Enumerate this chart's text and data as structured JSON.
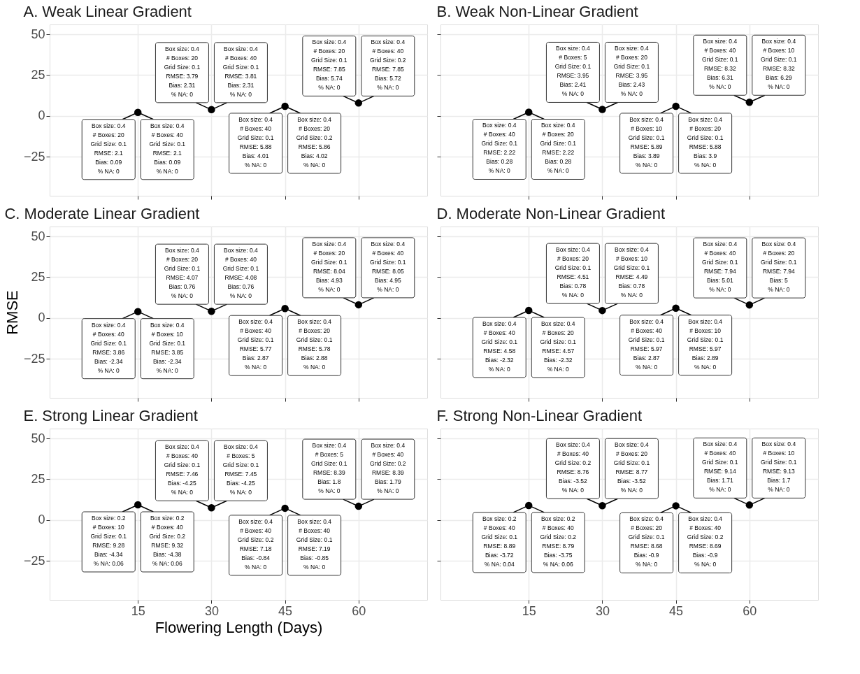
{
  "chart_data": [
    {
      "type": "scatter",
      "title": "A. Weak Linear Gradient",
      "x": [
        15,
        30,
        45,
        60
      ],
      "xlim": [
        -3,
        74
      ],
      "ylim": [
        -49,
        56
      ],
      "xticks": [
        15,
        30,
        45,
        60
      ],
      "yticks": [
        -25,
        0,
        25,
        50
      ],
      "grid": true,
      "marker": "circle",
      "tick_labels": "y",
      "series": [
        {
          "color": "#000000",
          "values": [
            2.1,
            3.79,
            5.88,
            7.85
          ]
        }
      ],
      "annotations": [
        {
          "text": "Box size: 0.4\n# Boxes: 20\nGrid Size: 0.1\nRMSE: 2.1\nBias: 0.09\n% NA: 0",
          "x": 15,
          "y": 2.1
        },
        {
          "text": "Box size: 0.4\n# Boxes: 40\nGrid Size: 0.1\nRMSE: 2.1\nBias: 0.09\n% NA: 0",
          "x": 15,
          "y": 2.1
        },
        {
          "text": "Box size: 0.4\n# Boxes: 20\nGrid Size: 0.1\nRMSE: 3.79\nBias: 2.31\n% NA: 0",
          "x": 30,
          "y": 3.79
        },
        {
          "text": "Box size: 0.4\n# Boxes: 40\nGrid Size: 0.1\nRMSE: 3.81\nBias: 2.31\n% NA: 0",
          "x": 30,
          "y": 3.79
        },
        {
          "text": "Box size: 0.4\n# Boxes: 40\nGrid Size: 0.1\nRMSE: 5.88\nBias: 4.01\n% NA: 0",
          "x": 45,
          "y": 5.88
        },
        {
          "text": "Box size: 0.4\n# Boxes: 20\nGrid Size: 0.2\nRMSE: 5.86\nBias: 4.02\n% NA: 0",
          "x": 45,
          "y": 5.88
        },
        {
          "text": "Box size: 0.4\n# Boxes: 20\nGrid Size: 0.1\nRMSE: 7.85\nBias: 5.74\n% NA: 0",
          "x": 60,
          "y": 7.85
        },
        {
          "text": "Box size: 0.4\n# Boxes: 40\nGrid Size: 0.2\nRMSE: 7.85\nBias: 5.72\n% NA: 0",
          "x": 60,
          "y": 7.85
        }
      ]
    },
    {
      "type": "scatter",
      "title": "B. Weak Non-Linear Gradient",
      "x": [
        15,
        30,
        45,
        60
      ],
      "xlim": [
        -3,
        74
      ],
      "ylim": [
        -49,
        56
      ],
      "xticks": [
        15,
        30,
        45,
        60
      ],
      "yticks": [
        -25,
        0,
        25,
        50
      ],
      "grid": true,
      "marker": "circle",
      "tick_labels": false,
      "series": [
        {
          "color": "#000000",
          "values": [
            2.22,
            3.95,
            5.89,
            8.32
          ]
        }
      ],
      "annotations": [
        {
          "text": "Box size: 0.4\n# Boxes: 40\nGrid Size: 0.1\nRMSE: 2.22\nBias: 0.28\n% NA: 0",
          "x": 15,
          "y": 2.22
        },
        {
          "text": "Box size: 0.4\n# Boxes: 20\nGrid Size: 0.1\nRMSE: 2.22\nBias: 0.28\n% NA: 0",
          "x": 15,
          "y": 2.22
        },
        {
          "text": "Box size: 0.4\n# Boxes: 5\nGrid Size: 0.1\nRMSE: 3.95\nBias: 2.41\n% NA: 0",
          "x": 30,
          "y": 3.95
        },
        {
          "text": "Box size: 0.4\n# Boxes: 20\nGrid Size: 0.1\nRMSE: 3.95\nBias: 2.43\n% NA: 0",
          "x": 30,
          "y": 3.95
        },
        {
          "text": "Box size: 0.4\n# Boxes: 10\nGrid Size: 0.1\nRMSE: 5.89\nBias: 3.89\n% NA: 0",
          "x": 45,
          "y": 5.89
        },
        {
          "text": "Box size: 0.4\n# Boxes: 20\nGrid Size: 0.1\nRMSE: 5.88\nBias: 3.9\n% NA: 0",
          "x": 45,
          "y": 5.89
        },
        {
          "text": "Box size: 0.4\n# Boxes: 40\nGrid Size: 0.1\nRMSE: 8.32\nBias: 6.31\n% NA: 0",
          "x": 60,
          "y": 8.32
        },
        {
          "text": "Box size: 0.4\n# Boxes: 10\nGrid Size: 0.1\nRMSE: 8.32\nBias: 6.29\n% NA: 0",
          "x": 60,
          "y": 8.32
        }
      ]
    },
    {
      "type": "scatter",
      "title": "C. Moderate Linear Gradient",
      "ylabel": "RMSE",
      "x": [
        15,
        30,
        45,
        60
      ],
      "xlim": [
        -3,
        74
      ],
      "ylim": [
        -49,
        56
      ],
      "xticks": [
        15,
        30,
        45,
        60
      ],
      "yticks": [
        -25,
        0,
        25,
        50
      ],
      "grid": true,
      "marker": "circle",
      "tick_labels": "y",
      "series": [
        {
          "color": "#000000",
          "values": [
            3.86,
            4.07,
            5.77,
            8.04
          ]
        }
      ],
      "annotations": [
        {
          "text": "Box size: 0.4\n# Boxes: 40\nGrid Size: 0.1\nRMSE: 3.86\nBias: -2.34\n% NA: 0",
          "x": 15,
          "y": 3.86
        },
        {
          "text": "Box size: 0.4\n# Boxes: 10\nGrid Size: 0.1\nRMSE: 3.85\nBias: -2.34\n% NA: 0",
          "x": 15,
          "y": 3.86
        },
        {
          "text": "Box size: 0.4\n# Boxes: 20\nGrid Size: 0.1\nRMSE: 4.07\nBias: 0.76\n% NA: 0",
          "x": 30,
          "y": 4.07
        },
        {
          "text": "Box size: 0.4\n# Boxes: 40\nGrid Size: 0.1\nRMSE: 4.08\nBias: 0.76\n% NA: 0",
          "x": 30,
          "y": 4.07
        },
        {
          "text": "Box size: 0.4\n# Boxes: 40\nGrid Size: 0.1\nRMSE: 5.77\nBias: 2.87\n% NA: 0",
          "x": 45,
          "y": 5.77
        },
        {
          "text": "Box size: 0.4\n# Boxes: 20\nGrid Size: 0.1\nRMSE: 5.78\nBias: 2.88\n% NA: 0",
          "x": 45,
          "y": 5.77
        },
        {
          "text": "Box size: 0.4\n# Boxes: 20\nGrid Size: 0.1\nRMSE: 8.04\nBias: 4.93\n% NA: 0",
          "x": 60,
          "y": 8.04
        },
        {
          "text": "Box size: 0.4\n# Boxes: 40\nGrid Size: 0.1\nRMSE: 8.05\nBias: 4.95\n% NA: 0",
          "x": 60,
          "y": 8.04
        }
      ]
    },
    {
      "type": "scatter",
      "title": "D. Moderate Non-Linear Gradient",
      "x": [
        15,
        30,
        45,
        60
      ],
      "xlim": [
        -3,
        74
      ],
      "ylim": [
        -49,
        56
      ],
      "xticks": [
        15,
        30,
        45,
        60
      ],
      "yticks": [
        -25,
        0,
        25,
        50
      ],
      "grid": true,
      "marker": "circle",
      "tick_labels": false,
      "series": [
        {
          "color": "#000000",
          "values": [
            4.58,
            4.51,
            5.97,
            7.94
          ]
        }
      ],
      "annotations": [
        {
          "text": "Box size: 0.4\n# Boxes: 40\nGrid Size: 0.1\nRMSE: 4.58\nBias: -2.32\n% NA: 0",
          "x": 15,
          "y": 4.58
        },
        {
          "text": "Box size: 0.4\n# Boxes: 20\nGrid Size: 0.1\nRMSE: 4.57\nBias: -2.32\n% NA: 0",
          "x": 15,
          "y": 4.58
        },
        {
          "text": "Box size: 0.4\n# Boxes: 20\nGrid Size: 0.1\nRMSE: 4.51\nBias: 0.78\n% NA: 0",
          "x": 30,
          "y": 4.51
        },
        {
          "text": "Box size: 0.4\n# Boxes: 10\nGrid Size: 0.1\nRMSE: 4.49\nBias: 0.78\n% NA: 0",
          "x": 30,
          "y": 4.51
        },
        {
          "text": "Box size: 0.4\n# Boxes: 40\nGrid Size: 0.1\nRMSE: 5.97\nBias: 2.87\n% NA: 0",
          "x": 45,
          "y": 5.97
        },
        {
          "text": "Box size: 0.4\n# Boxes: 10\nGrid Size: 0.1\nRMSE: 5.97\nBias: 2.89\n% NA: 0",
          "x": 45,
          "y": 5.97
        },
        {
          "text": "Box size: 0.4\n# Boxes: 40\nGrid Size: 0.1\nRMSE: 7.94\nBias: 5.01\n% NA: 0",
          "x": 60,
          "y": 7.94
        },
        {
          "text": "Box size: 0.4\n# Boxes: 20\nGrid Size: 0.1\nRMSE: 7.94\nBias: 5\n% NA: 0",
          "x": 60,
          "y": 7.94
        }
      ]
    },
    {
      "type": "scatter",
      "title": "E. Strong Linear Gradient",
      "xlabel": "Flowering Length (Days)",
      "x": [
        15,
        30,
        45,
        60
      ],
      "xlim": [
        -3,
        74
      ],
      "ylim": [
        -49,
        56
      ],
      "xticks": [
        15,
        30,
        45,
        60
      ],
      "yticks": [
        -25,
        0,
        25,
        50
      ],
      "grid": true,
      "marker": "circle",
      "series": [
        {
          "color": "#000000",
          "values": [
            9.28,
            7.46,
            7.18,
            8.39
          ]
        }
      ],
      "annotations": [
        {
          "text": "Box size: 0.2\n# Boxes: 10\nGrid Size: 0.1\nRMSE: 9.28\nBias: -4.34\n% NA: 0.06",
          "x": 15,
          "y": 9.28
        },
        {
          "text": "Box size: 0.2\n# Boxes: 40\nGrid Size: 0.2\nRMSE: 9.32\nBias: -4.38\n% NA: 0.06",
          "x": 15,
          "y": 9.28
        },
        {
          "text": "Box size: 0.4\n# Boxes: 40\nGrid Size: 0.1\nRMSE: 7.46\nBias: -4.25\n% NA: 0",
          "x": 30,
          "y": 7.46
        },
        {
          "text": "Box size: 0.4\n# Boxes: 5\nGrid Size: 0.1\nRMSE: 7.45\nBias: -4.25\n% NA: 0",
          "x": 30,
          "y": 7.46
        },
        {
          "text": "Box size: 0.4\n# Boxes: 40\nGrid Size: 0.2\nRMSE: 7.18\nBias: -0.84\n% NA: 0",
          "x": 45,
          "y": 7.18
        },
        {
          "text": "Box size: 0.4\n# Boxes: 40\nGrid Size: 0.1\nRMSE: 7.19\nBias: -0.85\n% NA: 0",
          "x": 45,
          "y": 7.18
        },
        {
          "text": "Box size: 0.4\n# Boxes: 5\nGrid Size: 0.1\nRMSE: 8.39\nBias: 1.8\n% NA: 0",
          "x": 60,
          "y": 8.39
        },
        {
          "text": "Box size: 0.4\n# Boxes: 40\nGrid Size: 0.2\nRMSE: 8.39\nBias: 1.79\n% NA: 0",
          "x": 60,
          "y": 8.39
        }
      ]
    },
    {
      "type": "scatter",
      "title": "F. Strong Non-Linear Gradient",
      "x": [
        15,
        30,
        45,
        60
      ],
      "xlim": [
        -3,
        74
      ],
      "ylim": [
        -49,
        56
      ],
      "xticks": [
        15,
        30,
        45,
        60
      ],
      "yticks": [
        -25,
        0,
        25,
        50
      ],
      "grid": true,
      "marker": "circle",
      "tick_labels": "x",
      "series": [
        {
          "color": "#000000",
          "values": [
            8.89,
            8.76,
            8.68,
            9.14
          ]
        }
      ],
      "annotations": [
        {
          "text": "Box size: 0.2\n# Boxes: 40\nGrid Size: 0.1\nRMSE: 8.89\nBias: -3.72\n% NA: 0.04",
          "x": 15,
          "y": 8.89
        },
        {
          "text": "Box size: 0.2\n# Boxes: 40\nGrid Size: 0.2\nRMSE: 8.79\nBias: -3.75\n% NA: 0.06",
          "x": 15,
          "y": 8.89
        },
        {
          "text": "Box size: 0.4\n# Boxes: 40\nGrid Size: 0.2\nRMSE: 8.76\nBias: -3.52\n% NA: 0",
          "x": 30,
          "y": 8.76
        },
        {
          "text": "Box size: 0.4\n# Boxes: 20\nGrid Size: 0.1\nRMSE: 8.77\nBias: -3.52\n% NA: 0",
          "x": 30,
          "y": 8.76
        },
        {
          "text": "Box size: 0.4\n# Boxes: 20\nGrid Size: 0.1\nRMSE: 8.68\nBias: -0.9\n% NA: 0",
          "x": 45,
          "y": 8.68
        },
        {
          "text": "Box size: 0.4\n# Boxes: 40\nGrid Size: 0.2\nRMSE: 8.69\nBias: -0.9\n% NA: 0",
          "x": 45,
          "y": 8.68
        },
        {
          "text": "Box size: 0.4\n# Boxes: 40\nGrid Size: 0.1\nRMSE: 9.14\nBias: 1.71\n% NA: 0",
          "x": 60,
          "y": 9.14
        },
        {
          "text": "Box size: 0.4\n# Boxes: 10\nGrid Size: 0.1\nRMSE: 9.13\nBias: 1.7\n% NA: 0",
          "x": 60,
          "y": 9.13
        }
      ]
    }
  ]
}
